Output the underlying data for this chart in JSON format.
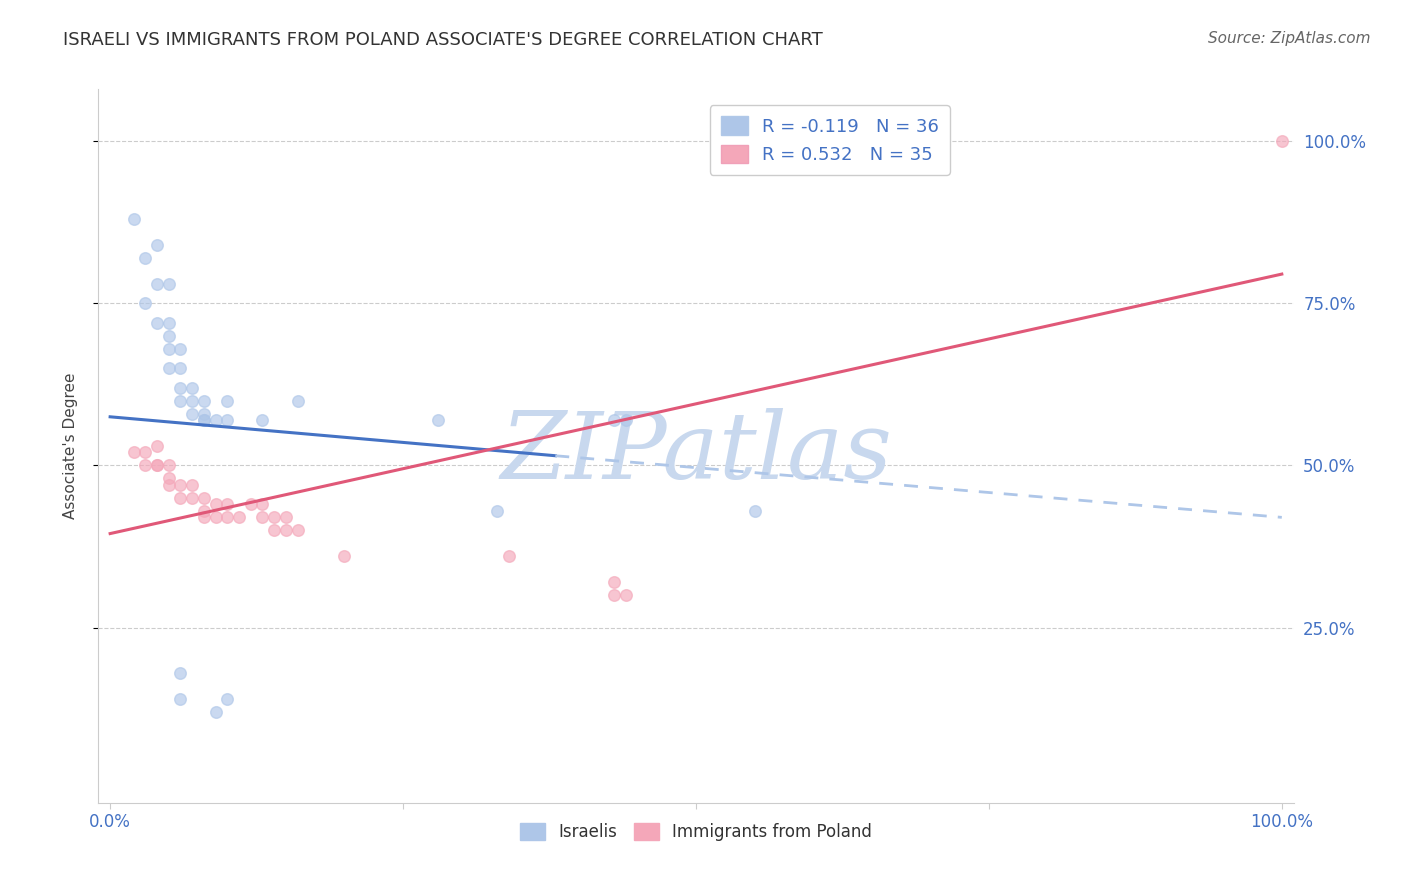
{
  "title": "ISRAELI VS IMMIGRANTS FROM POLAND ASSOCIATE'S DEGREE CORRELATION CHART",
  "source": "Source: ZipAtlas.com",
  "ylabel": "Associate's Degree",
  "watermark": "ZIPatlas",
  "legend_entries": [
    {
      "label": "R = -0.119   N = 36",
      "color": "#aec6e8"
    },
    {
      "label": "R = 0.532   N = 35",
      "color": "#f4a7b9"
    }
  ],
  "bottom_legend": [
    "Israelis",
    "Immigrants from Poland"
  ],
  "bottom_legend_colors": [
    "#aec6e8",
    "#f4a7b9"
  ],
  "ytick_labels_right": [
    "100.0%",
    "75.0%",
    "50.0%",
    "25.0%"
  ],
  "ytick_values": [
    1.0,
    0.75,
    0.5,
    0.25
  ],
  "xtick_labels": [
    "0.0%",
    "",
    "",
    "",
    "100.0%"
  ],
  "xtick_values": [
    0,
    0.25,
    0.5,
    0.75,
    1.0
  ],
  "xlim": [
    -0.01,
    1.01
  ],
  "ylim": [
    -0.02,
    1.08
  ],
  "blue_dots": [
    [
      0.02,
      0.88
    ],
    [
      0.03,
      0.82
    ],
    [
      0.04,
      0.84
    ],
    [
      0.03,
      0.75
    ],
    [
      0.04,
      0.72
    ],
    [
      0.04,
      0.78
    ],
    [
      0.05,
      0.78
    ],
    [
      0.05,
      0.72
    ],
    [
      0.05,
      0.7
    ],
    [
      0.05,
      0.68
    ],
    [
      0.06,
      0.68
    ],
    [
      0.05,
      0.65
    ],
    [
      0.06,
      0.65
    ],
    [
      0.06,
      0.62
    ],
    [
      0.06,
      0.6
    ],
    [
      0.07,
      0.62
    ],
    [
      0.07,
      0.6
    ],
    [
      0.07,
      0.58
    ],
    [
      0.08,
      0.6
    ],
    [
      0.08,
      0.58
    ],
    [
      0.08,
      0.57
    ],
    [
      0.08,
      0.57
    ],
    [
      0.09,
      0.57
    ],
    [
      0.1,
      0.57
    ],
    [
      0.1,
      0.6
    ],
    [
      0.13,
      0.57
    ],
    [
      0.16,
      0.6
    ],
    [
      0.28,
      0.57
    ],
    [
      0.43,
      0.57
    ],
    [
      0.44,
      0.57
    ],
    [
      0.33,
      0.43
    ],
    [
      0.55,
      0.43
    ],
    [
      0.06,
      0.18
    ],
    [
      0.06,
      0.14
    ],
    [
      0.09,
      0.12
    ],
    [
      0.1,
      0.14
    ]
  ],
  "pink_dots": [
    [
      0.02,
      0.52
    ],
    [
      0.03,
      0.52
    ],
    [
      0.03,
      0.5
    ],
    [
      0.04,
      0.53
    ],
    [
      0.04,
      0.5
    ],
    [
      0.04,
      0.5
    ],
    [
      0.05,
      0.48
    ],
    [
      0.05,
      0.5
    ],
    [
      0.05,
      0.47
    ],
    [
      0.06,
      0.47
    ],
    [
      0.06,
      0.45
    ],
    [
      0.07,
      0.47
    ],
    [
      0.07,
      0.45
    ],
    [
      0.08,
      0.45
    ],
    [
      0.08,
      0.43
    ],
    [
      0.08,
      0.42
    ],
    [
      0.09,
      0.44
    ],
    [
      0.09,
      0.42
    ],
    [
      0.1,
      0.44
    ],
    [
      0.1,
      0.42
    ],
    [
      0.11,
      0.42
    ],
    [
      0.12,
      0.44
    ],
    [
      0.13,
      0.44
    ],
    [
      0.13,
      0.42
    ],
    [
      0.14,
      0.42
    ],
    [
      0.14,
      0.4
    ],
    [
      0.15,
      0.4
    ],
    [
      0.15,
      0.42
    ],
    [
      0.16,
      0.4
    ],
    [
      0.2,
      0.36
    ],
    [
      0.34,
      0.36
    ],
    [
      0.43,
      0.3
    ],
    [
      0.43,
      0.32
    ],
    [
      0.44,
      0.3
    ],
    [
      1.0,
      1.0
    ]
  ],
  "blue_solid_line": {
    "x0": 0.0,
    "y0": 0.575,
    "x1": 0.38,
    "y1": 0.515
  },
  "blue_dashed_line": {
    "x0": 0.38,
    "y0": 0.515,
    "x1": 1.0,
    "y1": 0.42
  },
  "pink_line": {
    "x0": 0.0,
    "y0": 0.395,
    "x1": 1.0,
    "y1": 0.795
  },
  "title_color": "#333333",
  "title_fontsize": 13,
  "axis_tick_color": "#4472c4",
  "blue_dot_color": "#aec6e8",
  "pink_dot_color": "#f4a7b9",
  "blue_line_color": "#4472c4",
  "pink_line_color": "#e05878",
  "watermark_color": "#c8d8ee",
  "background_color": "#ffffff",
  "grid_color": "#cccccc",
  "dot_size": 70,
  "dot_alpha": 0.65,
  "source_fontsize": 11,
  "source_color": "#666666"
}
